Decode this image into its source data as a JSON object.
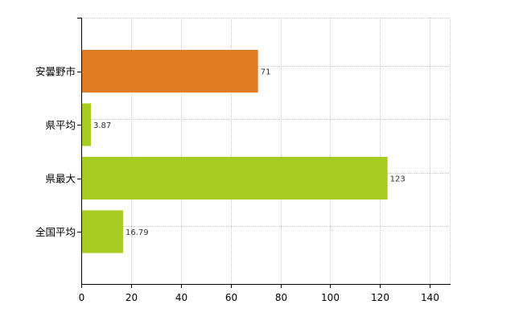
{
  "chart_data": {
    "type": "bar",
    "orientation": "horizontal",
    "categories": [
      "安曇野市",
      "県平均",
      "県最大",
      "全国平均"
    ],
    "values": [
      71,
      3.87,
      123,
      16.79
    ],
    "value_labels": [
      "71",
      "3.87",
      "123",
      "16.79"
    ],
    "bar_colors": [
      "#e07b24",
      "#a6cc22",
      "#a6cc22",
      "#a6cc22"
    ],
    "title": "",
    "xlabel": "",
    "ylabel": "",
    "xlim": [
      0,
      148
    ],
    "x_ticks": [
      0,
      20,
      40,
      60,
      80,
      100,
      120,
      140
    ],
    "grid": true,
    "legend": "none"
  }
}
